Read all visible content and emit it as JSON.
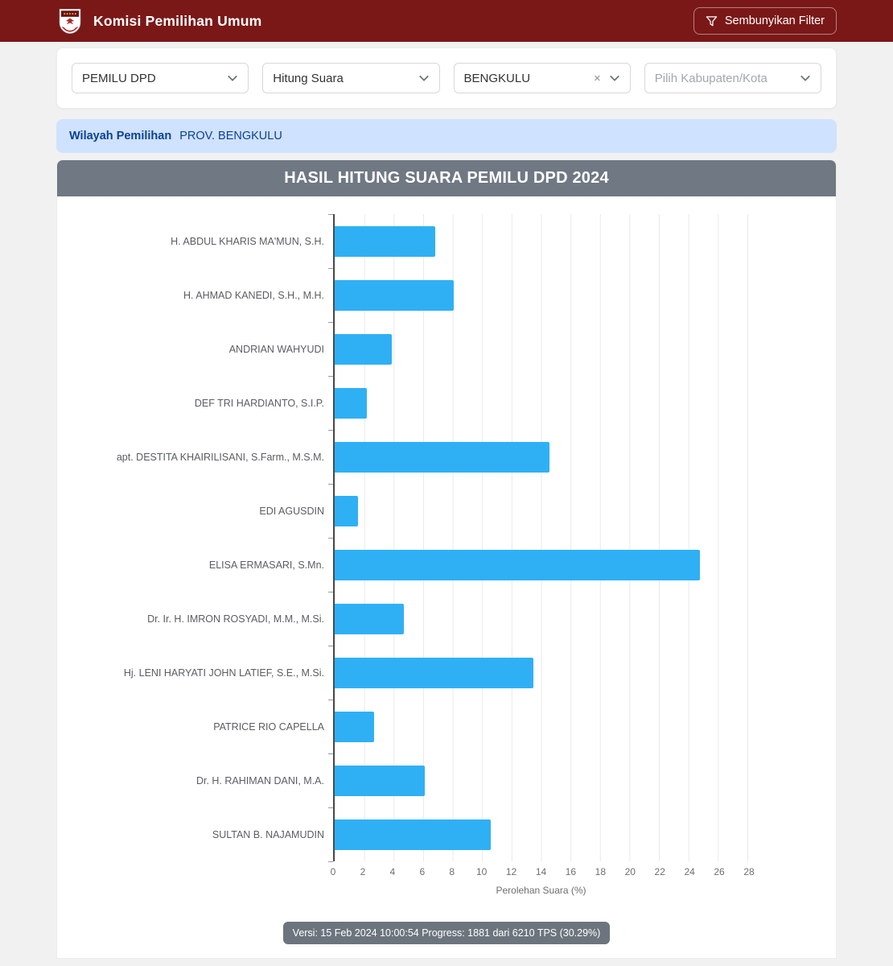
{
  "header": {
    "brand": "Komisi Pemilihan Umum",
    "filter_button_label": "Sembunyikan Filter"
  },
  "filters": [
    {
      "value": "PEMILU DPD",
      "placeholder": false,
      "clearable": false
    },
    {
      "value": "Hitung Suara",
      "placeholder": false,
      "clearable": false
    },
    {
      "value": "BENGKULU",
      "placeholder": false,
      "clearable": true,
      "clear_glyph": "×"
    },
    {
      "value": "Pilih Kabupaten/Kota",
      "placeholder": true,
      "clearable": false
    }
  ],
  "region_banner": {
    "label": "Wilayah Pemilihan",
    "value": "PROV. BENGKULU"
  },
  "chart_data": {
    "type": "bar",
    "orientation": "horizontal",
    "title": "HASIL HITUNG SUARA PEMILU DPD 2024",
    "categories": [
      "H. ABDUL KHARIS MA'MUN, S.H.",
      "H. AHMAD KANEDI, S.H., M.H.",
      "ANDRIAN WAHYUDI",
      "DEF TRI HARDIANTO, S.I.P.",
      "apt. DESTITA KHAIRILISANI, S.Farm., M.S.M.",
      "EDI AGUSDIN",
      "ELISA ERMASARI, S.Mn.",
      "Dr. Ir. H. IMRON ROSYADI, M.M., M.Si.",
      "Hj. LENI HARYATI JOHN LATIEF, S.E., M.Si.",
      "PATRICE RIO CAPELLA",
      "Dr. H. RAHIMAN DANI, M.A.",
      "SULTAN B. NAJAMUDIN"
    ],
    "values": [
      6.8,
      8.1,
      3.9,
      2.2,
      14.6,
      1.6,
      24.8,
      4.7,
      13.5,
      2.7,
      6.1,
      10.6
    ],
    "xlabel": "Perolehan Suara (%)",
    "xlim": [
      0,
      28
    ],
    "xticks": [
      0,
      2,
      4,
      6,
      8,
      10,
      12,
      14,
      16,
      18,
      20,
      22,
      24,
      26,
      28
    ],
    "grid": true,
    "legend": false,
    "bar_color": "#2fb0f5"
  },
  "footer": {
    "version_text": "Versi: 15 Feb 2024 10:00:54 Progress: 1881 dari 6210 TPS (30.29%)"
  },
  "colors": {
    "header_bg": "#7a1818",
    "banner_bg": "#cfe2ff",
    "banner_text": "#0b4191",
    "chart_header_bg": "#6f7883",
    "bar": "#2fb0f5",
    "badge_bg": "#6c757d"
  }
}
